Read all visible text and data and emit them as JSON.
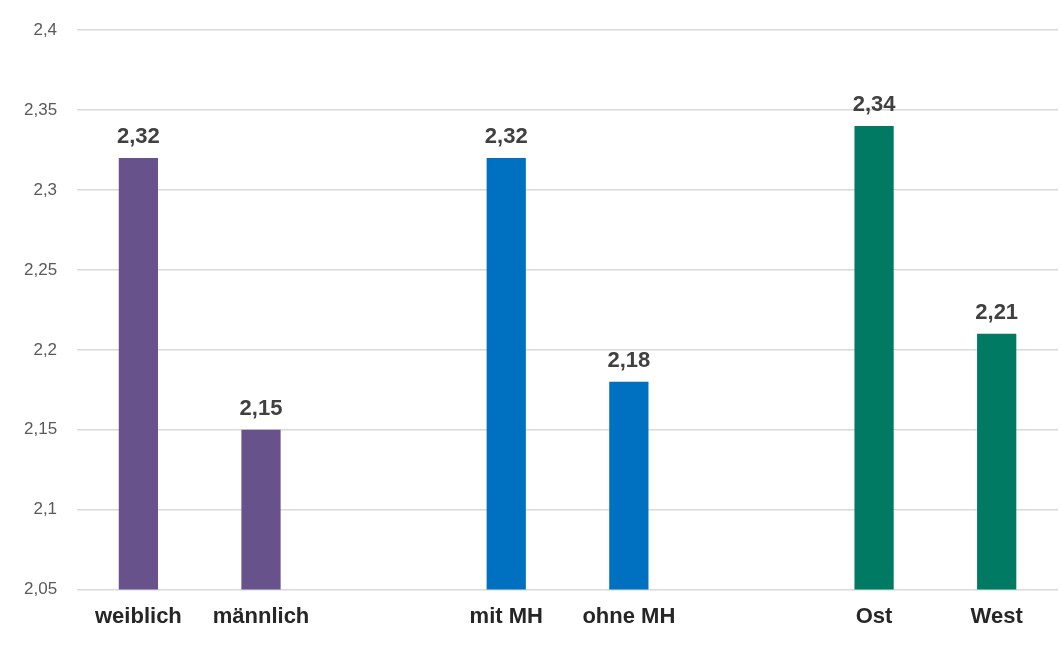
{
  "chart_data": {
    "type": "bar",
    "categories": [
      "weiblich",
      "männlich",
      null,
      "mit MH",
      "ohne MH",
      null,
      "Ost",
      "West"
    ],
    "values": [
      2.32,
      2.15,
      null,
      2.32,
      2.18,
      null,
      2.34,
      2.21
    ],
    "colors": [
      "#68528b",
      "#68528b",
      null,
      "#0070c0",
      "#0070c0",
      null,
      "#007a63",
      "#007a63"
    ],
    "value_labels": [
      "2,32",
      "2,15",
      null,
      "2,32",
      "2,18",
      null,
      "2,34",
      "2,21"
    ],
    "ylim": [
      2.05,
      2.4
    ],
    "yticks": [
      {
        "value": 2.05,
        "label": "2,05"
      },
      {
        "value": 2.1,
        "label": "2,1"
      },
      {
        "value": 2.15,
        "label": "2,15"
      },
      {
        "value": 2.2,
        "label": "2,2"
      },
      {
        "value": 2.25,
        "label": "2,25"
      },
      {
        "value": 2.3,
        "label": "2,3"
      },
      {
        "value": 2.35,
        "label": "2,35"
      },
      {
        "value": 2.4,
        "label": "2,4"
      }
    ],
    "grid": "y"
  }
}
